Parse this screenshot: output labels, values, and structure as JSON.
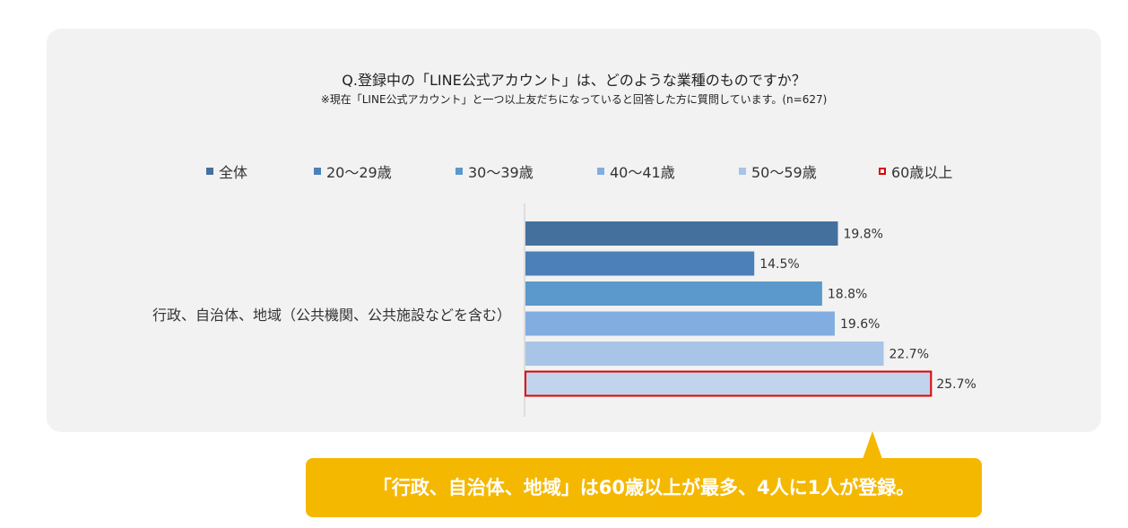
{
  "chart_data": {
    "type": "bar",
    "orientation": "horizontal",
    "title": "Q.登録中の「LINE公式アカウント」は、どのような業種のものですか？",
    "subtitle": "※現在「LINE公式アカウント」と一つ以上友だちになっていると回答した方に質問しています。(n=627)",
    "categories": [
      "行政、自治体、地域（公共機関、公共施設などを含む）"
    ],
    "unit": "%",
    "xlim": [
      0,
      30
    ],
    "grid": false,
    "legend_position": "top",
    "series": [
      {
        "name": "全体",
        "values": [
          19.8
        ],
        "label": "19.8%",
        "color": "#44709e",
        "outlined": false
      },
      {
        "name": "20〜29歳",
        "values": [
          14.5
        ],
        "label": "14.5%",
        "color": "#4c80b8",
        "outlined": false
      },
      {
        "name": "30〜39歳",
        "values": [
          18.8
        ],
        "label": "18.8%",
        "color": "#5b98cc",
        "outlined": false
      },
      {
        "name": "40〜41歳",
        "values": [
          19.6
        ],
        "label": "19.6%",
        "color": "#82ade0",
        "outlined": false
      },
      {
        "name": "50〜59歳",
        "values": [
          22.7
        ],
        "label": "22.7%",
        "color": "#a8c4e6",
        "outlined": false
      },
      {
        "name": "60歳以上",
        "values": [
          25.7
        ],
        "label": "25.7%",
        "color": "#c2d3ee",
        "outlined": true,
        "outline_color": "#e00000"
      }
    ]
  },
  "callout": {
    "text": "「行政、自治体、地域」は60歳以上が最多、4人に1人が登録。",
    "color": "#f5b800"
  }
}
